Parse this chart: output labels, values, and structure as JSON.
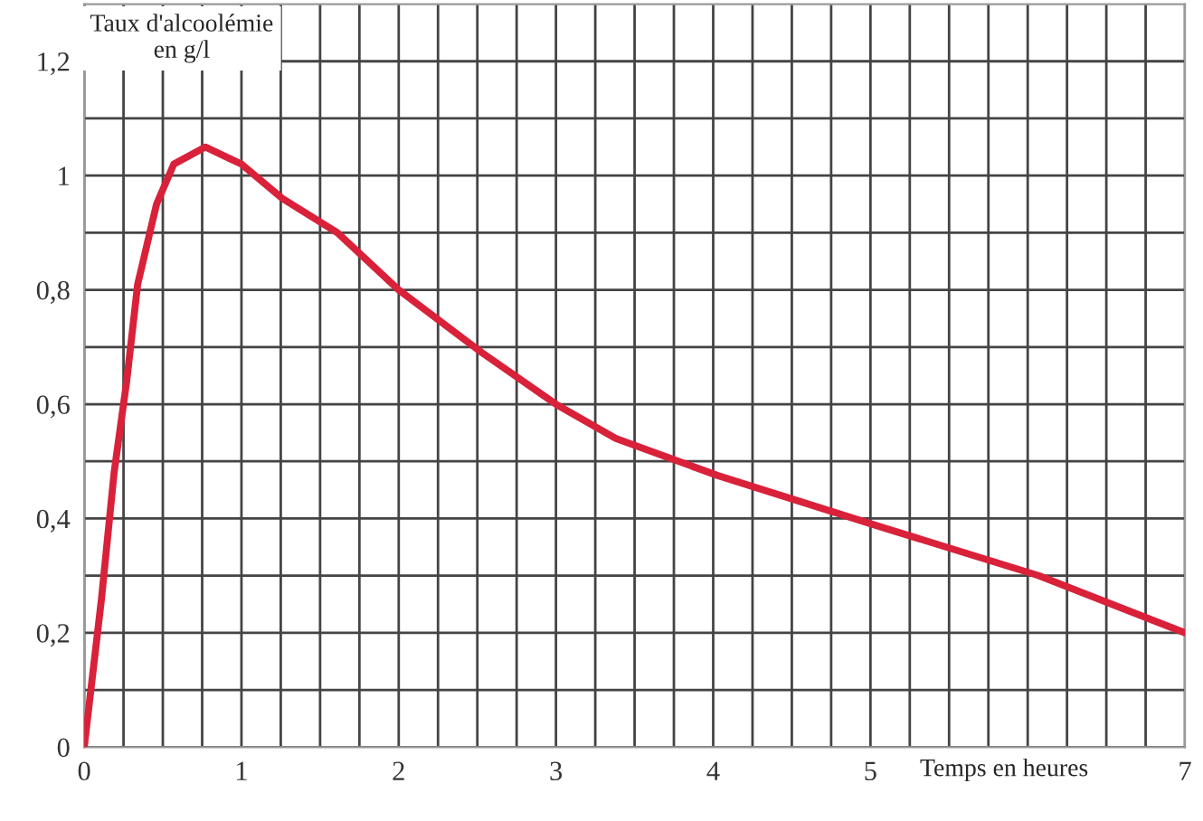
{
  "chart_data": {
    "type": "line",
    "xlabel": "Temps en heures",
    "ylabel": "Taux d'alcoolémie\nen g/l",
    "x": [
      0,
      0.11,
      0.19,
      0.27,
      0.34,
      0.46,
      0.57,
      0.77,
      1.0,
      1.26,
      1.61,
      2.0,
      2.53,
      3.0,
      3.38,
      4.03,
      5.07,
      6.07,
      7.0
    ],
    "series": [
      {
        "color": "#d9213a",
        "values": [
          0,
          0.26,
          0.48,
          0.64,
          0.81,
          0.95,
          1.02,
          1.05,
          1.02,
          0.96,
          0.9,
          0.8,
          0.69,
          0.6,
          0.54,
          0.475,
          0.385,
          0.3,
          0.2
        ]
      }
    ],
    "xlim": [
      0,
      7
    ],
    "ylim": [
      0,
      1.3
    ],
    "xticks": [
      0,
      {
        "value": 0.25,
        "label": null
      },
      {
        "value": 0.5,
        "label": null
      },
      {
        "value": 0.75,
        "label": null
      },
      1,
      {
        "value": 1.25,
        "label": null
      },
      {
        "value": 1.5,
        "label": null
      },
      {
        "value": 1.75,
        "label": null
      },
      2,
      {
        "value": 2.25,
        "label": null
      },
      {
        "value": 2.5,
        "label": null
      },
      {
        "value": 2.75,
        "label": null
      },
      3,
      {
        "value": 3.25,
        "label": null
      },
      {
        "value": 3.5,
        "label": null
      },
      {
        "value": 3.75,
        "label": null
      },
      4,
      {
        "value": 4.25,
        "label": null
      },
      {
        "value": 4.5,
        "label": null
      },
      {
        "value": 4.75,
        "label": null
      },
      5,
      {
        "value": 5.25,
        "label": null
      },
      {
        "value": 5.5,
        "label": null
      },
      {
        "value": 5.75,
        "label": null
      },
      {
        "value": 6,
        "label": null
      },
      {
        "value": 6.25,
        "label": null
      },
      {
        "value": 6.5,
        "label": null
      },
      {
        "value": 6.75,
        "label": null
      },
      7
    ],
    "yticks": [
      {
        "value": 0,
        "label": "0"
      },
      {
        "value": 0.1,
        "label": null
      },
      {
        "value": 0.2,
        "label": "0,2"
      },
      {
        "value": 0.3,
        "label": null
      },
      {
        "value": 0.4,
        "label": "0,4"
      },
      {
        "value": 0.5,
        "label": null
      },
      {
        "value": 0.6,
        "label": "0,6"
      },
      {
        "value": 0.7,
        "label": null
      },
      {
        "value": 0.8,
        "label": "0,8"
      },
      {
        "value": 0.9,
        "label": null
      },
      {
        "value": 1,
        "label": "1"
      },
      {
        "value": 1.1,
        "label": null
      },
      {
        "value": 1.2,
        "label": "1,2"
      }
    ],
    "grid": true,
    "marker": "none",
    "line_style": "solid",
    "legend": false
  }
}
